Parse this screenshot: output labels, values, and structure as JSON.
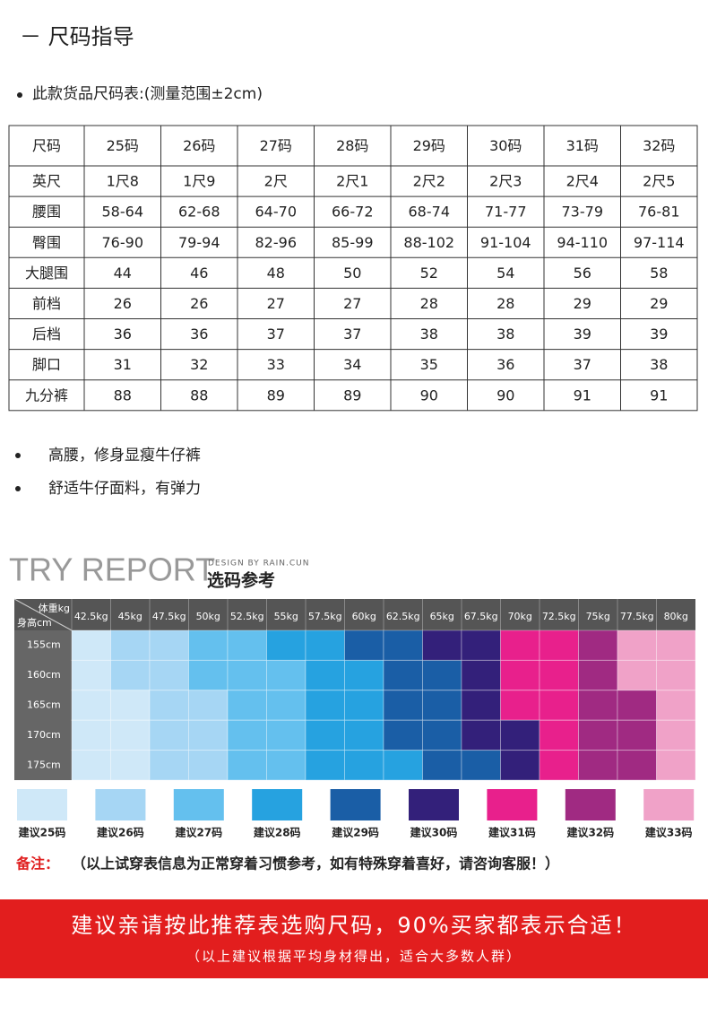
{
  "header": {
    "title": "－ 尺码指导"
  },
  "size_table": {
    "caption": "此款货品尺码表:(测量范围±2cm)",
    "rows": [
      [
        "尺码",
        "25码",
        "26码",
        "27码",
        "28码",
        "29码",
        "30码",
        "31码",
        "32码"
      ],
      [
        "英尺",
        "1尺8",
        "1尺9",
        "2尺",
        "2尺1",
        "2尺2",
        "2尺3",
        "2尺4",
        "2尺5"
      ],
      [
        "腰围",
        "58-64",
        "62-68",
        "64-70",
        "66-72",
        "68-74",
        "71-77",
        "73-79",
        "76-81"
      ],
      [
        "臀围",
        "76-90",
        "79-94",
        "82-96",
        "85-99",
        "88-102",
        "91-104",
        "94-110",
        "97-114"
      ],
      [
        "大腿围",
        "44",
        "46",
        "48",
        "50",
        "52",
        "54",
        "56",
        "58"
      ],
      [
        "前档",
        "26",
        "26",
        "27",
        "27",
        "28",
        "28",
        "29",
        "29"
      ],
      [
        "后档",
        "36",
        "36",
        "37",
        "37",
        "38",
        "38",
        "39",
        "39"
      ],
      [
        "脚口",
        "31",
        "32",
        "33",
        "34",
        "35",
        "36",
        "37",
        "38"
      ],
      [
        "九分裤",
        "88",
        "88",
        "89",
        "89",
        "90",
        "90",
        "91",
        "91"
      ]
    ]
  },
  "features": [
    "高腰，修身显瘦牛仔裤",
    "舒适牛仔面料，有弹力"
  ],
  "report": {
    "title": "TRY REPORT",
    "credit": "DESIGN BY RAIN.CUN",
    "subtitle": "选码参考",
    "corner_top": "体重kg",
    "corner_bottom": "身高cm",
    "weights": [
      "42.5kg",
      "45kg",
      "47.5kg",
      "50kg",
      "52.5kg",
      "55kg",
      "57.5kg",
      "60kg",
      "62.5kg",
      "65kg",
      "67.5kg",
      "70kg",
      "72.5kg",
      "75kg",
      "77.5kg",
      "80kg"
    ],
    "heights": [
      "155cm",
      "160cm",
      "165cm",
      "170cm",
      "175cm"
    ],
    "cells": [
      [
        0,
        1,
        1,
        2,
        2,
        3,
        3,
        4,
        4,
        5,
        5,
        6,
        6,
        7,
        8,
        8
      ],
      [
        0,
        1,
        1,
        2,
        2,
        2,
        3,
        3,
        4,
        4,
        5,
        6,
        6,
        7,
        8,
        8
      ],
      [
        0,
        0,
        1,
        1,
        2,
        2,
        3,
        3,
        4,
        4,
        5,
        6,
        6,
        7,
        7,
        8
      ],
      [
        0,
        0,
        1,
        1,
        2,
        2,
        3,
        3,
        4,
        4,
        5,
        5,
        6,
        7,
        7,
        8
      ],
      [
        0,
        0,
        1,
        1,
        2,
        2,
        3,
        3,
        3,
        4,
        4,
        5,
        6,
        7,
        7,
        8
      ]
    ],
    "legend": [
      {
        "label": "建议25码",
        "color": "#cfe8f8"
      },
      {
        "label": "建议26码",
        "color": "#a6d6f4"
      },
      {
        "label": "建议27码",
        "color": "#64c0ee"
      },
      {
        "label": "建议28码",
        "color": "#26a2e0"
      },
      {
        "label": "建议29码",
        "color": "#1a5ea6"
      },
      {
        "label": "建议30码",
        "color": "#33207a"
      },
      {
        "label": "建议31码",
        "color": "#e8208c"
      },
      {
        "label": "建议32码",
        "color": "#a02a82"
      },
      {
        "label": "建议33码",
        "color": "#f0a2c8"
      }
    ]
  },
  "note": {
    "label": "备注：",
    "text": "（以上试穿表信息为正常穿着习惯参考，如有特殊穿着喜好，请咨询客服！）"
  },
  "banner": {
    "title": "建议亲请按此推荐表选购尺码，90%买家都表示合适！",
    "subtitle": "（以上建议根据平均身材得出，适合大多数人群）"
  }
}
